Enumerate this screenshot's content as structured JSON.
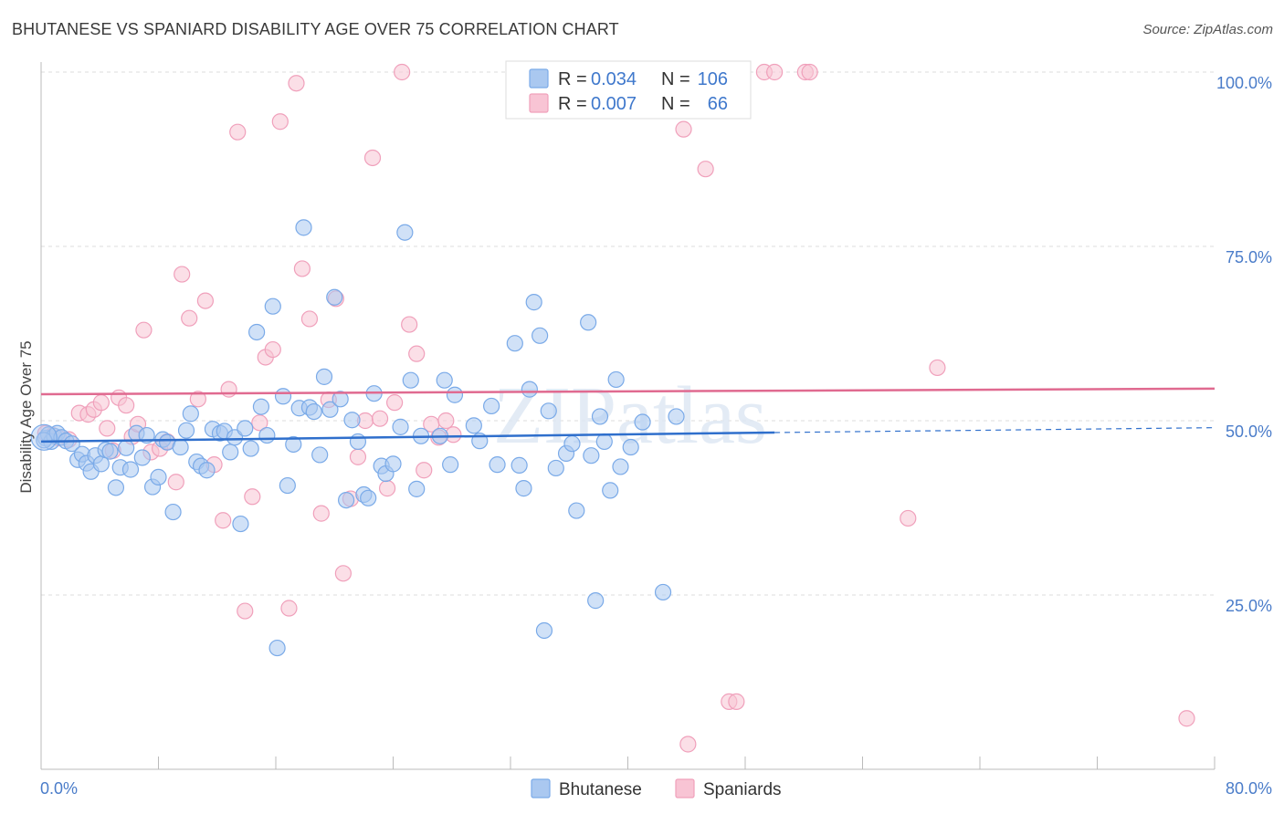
{
  "title": "BHUTANESE VS SPANIARD DISABILITY AGE OVER 75 CORRELATION CHART",
  "source": "Source: ZipAtlas.com",
  "watermark": "ZIPatlas",
  "chart_data": {
    "type": "scatter",
    "ylabel": "Disability Age Over 75",
    "xlim": [
      0,
      80
    ],
    "ylim": [
      0,
      100
    ],
    "x_tick_labels": [
      "0.0%",
      "80.0%"
    ],
    "y_ticks": [
      25,
      50,
      75,
      100
    ],
    "y_tick_labels": [
      "25.0%",
      "50.0%",
      "75.0%",
      "100.0%"
    ],
    "grid": true,
    "legend_top": [
      {
        "r_label": "R =",
        "r_value": "0.034",
        "n_label": "N =",
        "n_value": "106"
      },
      {
        "r_label": "R =",
        "r_value": "0.007",
        "n_label": "N =",
        "n_value": "66"
      }
    ],
    "series": [
      {
        "name": "Bhutanese",
        "color": "#7aaae8",
        "fill": "#aac8f0",
        "line_color": "#2f6fcc",
        "trend": {
          "x0": 0,
          "y0": 47.0,
          "x1": 50,
          "y1": 48.3,
          "dash_to_x": 80,
          "dash_to_y": 49.0
        },
        "points": [
          [
            0.3,
            47.5
          ],
          [
            0.5,
            48
          ],
          [
            0.7,
            47
          ],
          [
            0.9,
            47.8
          ],
          [
            1.1,
            48.2
          ],
          [
            1.4,
            47.6
          ],
          [
            1.7,
            47.1
          ],
          [
            2.1,
            46.7
          ],
          [
            2.5,
            44.4
          ],
          [
            2.8,
            45.2
          ],
          [
            3.1,
            43.9
          ],
          [
            3.4,
            42.7
          ],
          [
            3.7,
            45.0
          ],
          [
            4.1,
            43.8
          ],
          [
            4.4,
            45.8
          ],
          [
            4.7,
            45.6
          ],
          [
            5.1,
            40.4
          ],
          [
            5.4,
            43.3
          ],
          [
            5.8,
            46.1
          ],
          [
            6.1,
            43.0
          ],
          [
            6.5,
            48.2
          ],
          [
            6.9,
            44.7
          ],
          [
            7.2,
            47.9
          ],
          [
            7.6,
            40.5
          ],
          [
            8.0,
            41.9
          ],
          [
            8.3,
            47.3
          ],
          [
            8.6,
            46.9
          ],
          [
            9.0,
            36.9
          ],
          [
            9.5,
            46.2
          ],
          [
            9.9,
            48.6
          ],
          [
            10.2,
            51.0
          ],
          [
            10.6,
            44.1
          ],
          [
            10.9,
            43.5
          ],
          [
            11.3,
            42.9
          ],
          [
            11.7,
            48.8
          ],
          [
            12.2,
            48.2
          ],
          [
            12.5,
            48.5
          ],
          [
            12.9,
            45.5
          ],
          [
            13.2,
            47.6
          ],
          [
            13.6,
            35.2
          ],
          [
            13.9,
            48.9
          ],
          [
            14.3,
            46.0
          ],
          [
            14.7,
            62.7
          ],
          [
            15.0,
            52.0
          ],
          [
            15.4,
            47.9
          ],
          [
            15.8,
            66.4
          ],
          [
            16.1,
            17.4
          ],
          [
            16.5,
            53.5
          ],
          [
            16.8,
            40.7
          ],
          [
            17.2,
            46.6
          ],
          [
            17.6,
            51.8
          ],
          [
            17.9,
            77.7
          ],
          [
            18.3,
            51.9
          ],
          [
            18.6,
            51.3
          ],
          [
            19.0,
            45.1
          ],
          [
            19.3,
            56.3
          ],
          [
            19.7,
            51.6
          ],
          [
            20.0,
            67.7
          ],
          [
            20.4,
            53.1
          ],
          [
            20.8,
            38.6
          ],
          [
            21.2,
            50.1
          ],
          [
            21.6,
            47.0
          ],
          [
            22.0,
            39.4
          ],
          [
            22.3,
            38.9
          ],
          [
            22.7,
            53.9
          ],
          [
            23.2,
            43.5
          ],
          [
            23.5,
            42.4
          ],
          [
            24.0,
            43.8
          ],
          [
            24.5,
            49.1
          ],
          [
            24.8,
            77.0
          ],
          [
            25.2,
            55.8
          ],
          [
            25.6,
            40.2
          ],
          [
            25.9,
            47.8
          ],
          [
            27.2,
            47.8
          ],
          [
            27.5,
            55.8
          ],
          [
            27.9,
            43.7
          ],
          [
            28.2,
            53.7
          ],
          [
            29.5,
            49.3
          ],
          [
            29.9,
            47.1
          ],
          [
            30.7,
            52.1
          ],
          [
            31.1,
            43.7
          ],
          [
            32.3,
            61.1
          ],
          [
            32.6,
            43.6
          ],
          [
            32.9,
            40.3
          ],
          [
            33.3,
            54.5
          ],
          [
            33.6,
            67.0
          ],
          [
            34.0,
            62.2
          ],
          [
            34.3,
            19.9
          ],
          [
            34.6,
            51.4
          ],
          [
            35.1,
            43.2
          ],
          [
            35.8,
            45.3
          ],
          [
            36.2,
            46.7
          ],
          [
            36.5,
            37.1
          ],
          [
            37.3,
            64.1
          ],
          [
            37.5,
            45.0
          ],
          [
            37.8,
            24.2
          ],
          [
            38.1,
            50.6
          ],
          [
            38.4,
            47.0
          ],
          [
            38.8,
            40.0
          ],
          [
            39.2,
            55.9
          ],
          [
            39.5,
            43.4
          ],
          [
            40.2,
            46.2
          ],
          [
            41.0,
            49.8
          ],
          [
            42.4,
            25.4
          ],
          [
            43.3,
            50.6
          ],
          [
            0.2,
            47.2
          ]
        ]
      },
      {
        "name": "Spaniards",
        "color": "#f0a0bb",
        "fill": "#f8c4d4",
        "line_color": "#e06a90",
        "trend": {
          "x0": 0,
          "y0": 53.8,
          "x1": 80,
          "y1": 54.6
        },
        "points": [
          [
            0.3,
            48.2
          ],
          [
            0.8,
            47.9
          ],
          [
            1.2,
            47.5
          ],
          [
            1.9,
            47.3
          ],
          [
            2.6,
            51.1
          ],
          [
            3.2,
            50.9
          ],
          [
            3.6,
            51.6
          ],
          [
            4.1,
            52.6
          ],
          [
            4.5,
            48.9
          ],
          [
            4.9,
            45.7
          ],
          [
            5.3,
            53.3
          ],
          [
            5.8,
            52.2
          ],
          [
            6.2,
            47.7
          ],
          [
            6.6,
            49.5
          ],
          [
            7.0,
            63.0
          ],
          [
            7.5,
            45.5
          ],
          [
            8.1,
            46.0
          ],
          [
            8.6,
            47.0
          ],
          [
            9.2,
            41.2
          ],
          [
            9.6,
            71.0
          ],
          [
            10.1,
            64.7
          ],
          [
            10.7,
            53.1
          ],
          [
            11.2,
            67.2
          ],
          [
            11.8,
            43.7
          ],
          [
            12.4,
            35.7
          ],
          [
            12.8,
            54.5
          ],
          [
            13.4,
            91.4
          ],
          [
            13.9,
            22.7
          ],
          [
            14.4,
            39.1
          ],
          [
            14.9,
            49.7
          ],
          [
            15.3,
            59.1
          ],
          [
            15.8,
            60.2
          ],
          [
            16.3,
            92.9
          ],
          [
            16.9,
            23.1
          ],
          [
            17.4,
            98.4
          ],
          [
            17.8,
            71.8
          ],
          [
            18.3,
            64.6
          ],
          [
            19.1,
            36.7
          ],
          [
            19.6,
            53.0
          ],
          [
            20.1,
            67.5
          ],
          [
            20.6,
            28.1
          ],
          [
            21.1,
            38.8
          ],
          [
            21.6,
            44.8
          ],
          [
            22.1,
            50.0
          ],
          [
            22.6,
            87.7
          ],
          [
            23.1,
            50.3
          ],
          [
            23.6,
            40.3
          ],
          [
            24.1,
            52.6
          ],
          [
            24.6,
            100.0
          ],
          [
            25.1,
            63.8
          ],
          [
            25.6,
            59.6
          ],
          [
            26.1,
            42.9
          ],
          [
            26.6,
            49.5
          ],
          [
            27.1,
            47.6
          ],
          [
            27.6,
            50.0
          ],
          [
            28.1,
            48.0
          ],
          [
            43.8,
            91.8
          ],
          [
            45.3,
            86.1
          ],
          [
            46.9,
            9.7
          ],
          [
            47.4,
            9.7
          ],
          [
            49.3,
            100.0
          ],
          [
            50.0,
            100.0
          ],
          [
            52.1,
            100.0
          ],
          [
            61.1,
            57.6
          ],
          [
            78.1,
            7.3
          ],
          [
            52.4,
            100.0
          ]
        ]
      }
    ],
    "extra_spaniard_points": [
      [
        44.1,
        3.6
      ],
      [
        59.1,
        36.0
      ],
      [
        45.7,
        96.3
      ]
    ]
  }
}
